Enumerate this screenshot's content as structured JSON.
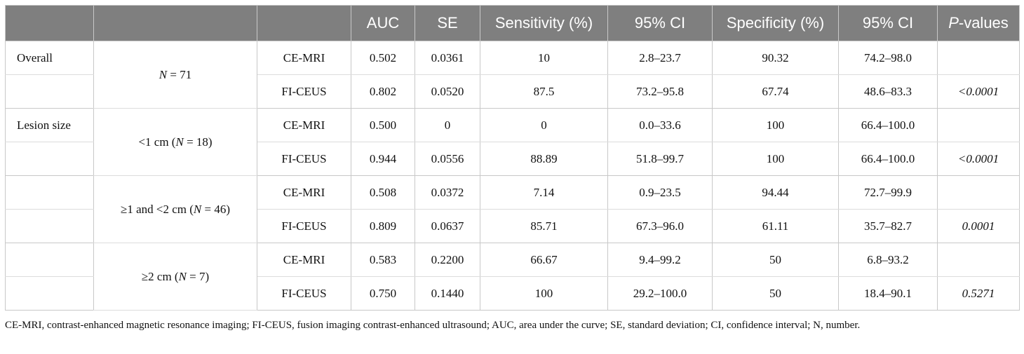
{
  "table": {
    "headers": [
      "",
      "",
      "",
      "AUC",
      "SE",
      "Sensitivity (%)",
      "95% CI",
      "Specificity (%)",
      "95% CI",
      "P-values"
    ],
    "pvalue_header": {
      "italic": "P",
      "rest": "-values"
    },
    "rows": [
      {
        "group": "Overall",
        "n_pre": "",
        "n_italic": "N",
        "n_post": " = 71",
        "method": "CE-MRI",
        "auc": "0.502",
        "se": "0.0361",
        "sens": "10",
        "sens_ci": "2.8–23.7",
        "spec": "90.32",
        "spec_ci": "74.2–98.0",
        "p": ""
      },
      {
        "group": "",
        "method": "FI-CEUS",
        "auc": "0.802",
        "se": "0.0520",
        "sens": "87.5",
        "sens_ci": "73.2–95.8",
        "spec": "67.74",
        "spec_ci": "48.6–83.3",
        "p": "<0.0001"
      },
      {
        "group": "Lesion size",
        "n_pre": "<1 cm (",
        "n_italic": "N",
        "n_post": " = 18)",
        "method": "CE-MRI",
        "auc": "0.500",
        "se": "0",
        "sens": "0",
        "sens_ci": "0.0–33.6",
        "spec": "100",
        "spec_ci": "66.4–100.0",
        "p": ""
      },
      {
        "group": "",
        "method": "FI-CEUS",
        "auc": "0.944",
        "se": "0.0556",
        "sens": "88.89",
        "sens_ci": "51.8–99.7",
        "spec": "100",
        "spec_ci": "66.4–100.0",
        "p": "<0.0001"
      },
      {
        "group": "",
        "n_pre": "≥1 and <2 cm (",
        "n_italic": "N",
        "n_post": " = 46)",
        "method": "CE-MRI",
        "auc": "0.508",
        "se": "0.0372",
        "sens": "7.14",
        "sens_ci": "0.9–23.5",
        "spec": "94.44",
        "spec_ci": "72.7–99.9",
        "p": ""
      },
      {
        "group": "",
        "method": "FI-CEUS",
        "auc": "0.809",
        "se": "0.0637",
        "sens": "85.71",
        "sens_ci": "67.3–96.0",
        "spec": "61.11",
        "spec_ci": "35.7–82.7",
        "p": "0.0001"
      },
      {
        "group": "",
        "n_pre": "≥2 cm (",
        "n_italic": "N",
        "n_post": " = 7)",
        "method": "CE-MRI",
        "auc": "0.583",
        "se": "0.2200",
        "sens": "66.67",
        "sens_ci": "9.4–99.2",
        "spec": "50",
        "spec_ci": "6.8–93.2",
        "p": ""
      },
      {
        "group": "",
        "method": "FI-CEUS",
        "auc": "0.750",
        "se": "0.1440",
        "sens": "100",
        "sens_ci": "29.2–100.0",
        "spec": "50",
        "spec_ci": "18.4–90.1",
        "p": "0.5271"
      }
    ]
  },
  "footnote": "CE-MRI, contrast-enhanced magnetic resonance imaging; FI-CEUS, fusion imaging contrast-enhanced ultrasound; AUC, area under the curve; SE, standard deviation; CI, confidence interval; N, number.",
  "colors": {
    "header_bg": "#7f7f7f",
    "header_text": "#ffffff",
    "border": "#c8c8c8"
  }
}
